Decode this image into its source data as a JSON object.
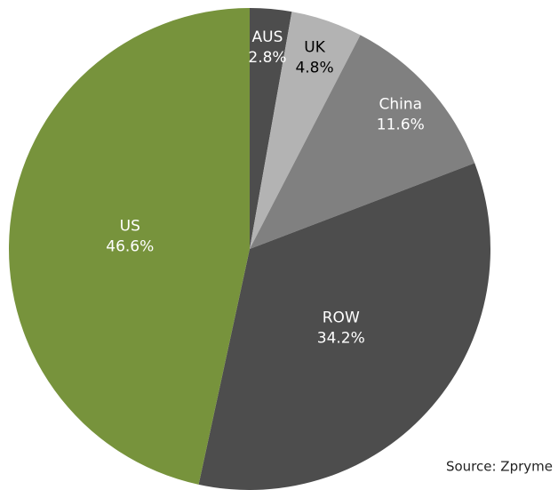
{
  "chart_data": {
    "type": "pie",
    "categories": [
      "AUS",
      "UK",
      "China",
      "ROW",
      "US"
    ],
    "values": [
      2.8,
      4.8,
      11.6,
      34.2,
      46.6
    ],
    "value_labels": [
      "2.8%",
      "4.8%",
      "11.6%",
      "34.2%",
      "46.6%"
    ],
    "colors": [
      "#4d4d4d",
      "#b3b3b3",
      "#808080",
      "#4d4d4d",
      "#77933c"
    ],
    "source": "Source: Zpryme"
  }
}
